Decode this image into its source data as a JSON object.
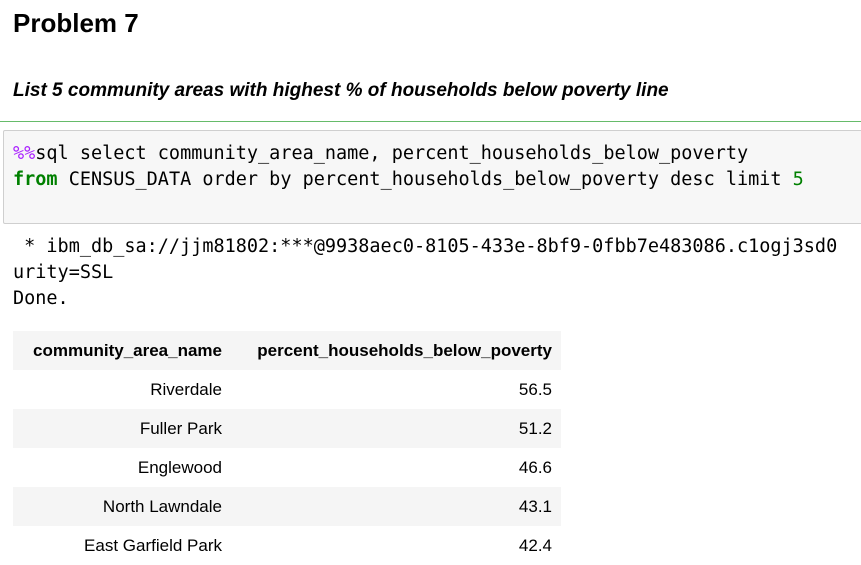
{
  "heading": "Problem 7",
  "subheading": "List 5 community areas with highest % of households below poverty line",
  "code": {
    "lines": [
      [
        "%%",
        "sql select community_area_name, percent_households_below_poverty"
      ],
      [
        "from",
        " CENSUS_DATA order by percent_households_below_poverty desc limit ",
        "5"
      ]
    ]
  },
  "output": [
    " * ibm_db_sa://jjm81802:***@9938aec0-8105-433e-8bf9-0fbb7e483086.c1ogj3sd0",
    "urity=SSL",
    "Done."
  ],
  "table": {
    "columns": [
      "community_area_name",
      "percent_households_below_poverty"
    ],
    "rows": [
      [
        "Riverdale",
        56.5
      ],
      [
        "Fuller Park",
        51.2
      ],
      [
        "Englewood",
        46.6
      ],
      [
        "North Lawndale",
        43.1
      ],
      [
        "East Garfield Park",
        42.4
      ]
    ]
  }
}
